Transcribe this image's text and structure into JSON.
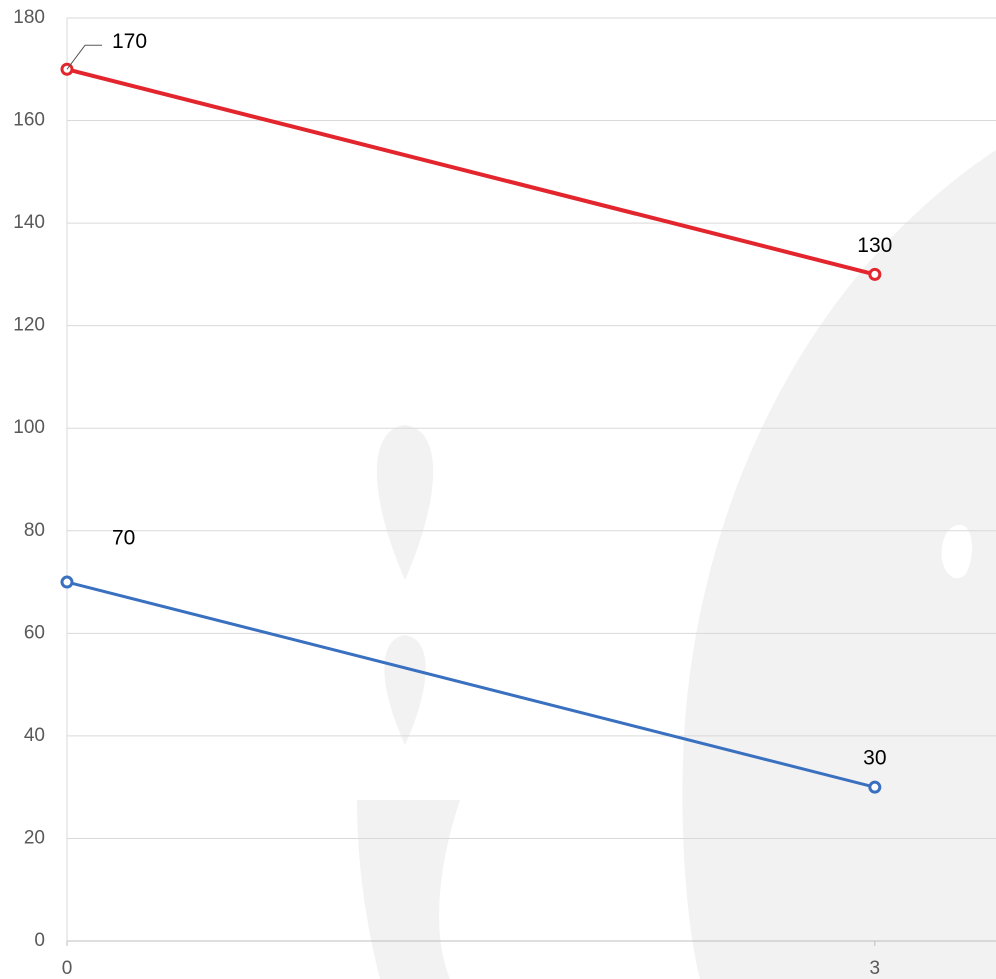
{
  "chart_data": {
    "type": "line",
    "x": [
      0,
      3
    ],
    "series": [
      {
        "color": "#e3262e",
        "values": [
          170,
          130
        ]
      },
      {
        "color": "#3a70c0",
        "values": [
          70,
          30
        ]
      }
    ],
    "xlim": [
      0,
      3.45
    ],
    "xticks": [
      0,
      3
    ],
    "ylim": [
      0,
      180
    ],
    "yticks": [
      0,
      20,
      40,
      60,
      80,
      100,
      120,
      140,
      160,
      180
    ],
    "grid": true
  }
}
